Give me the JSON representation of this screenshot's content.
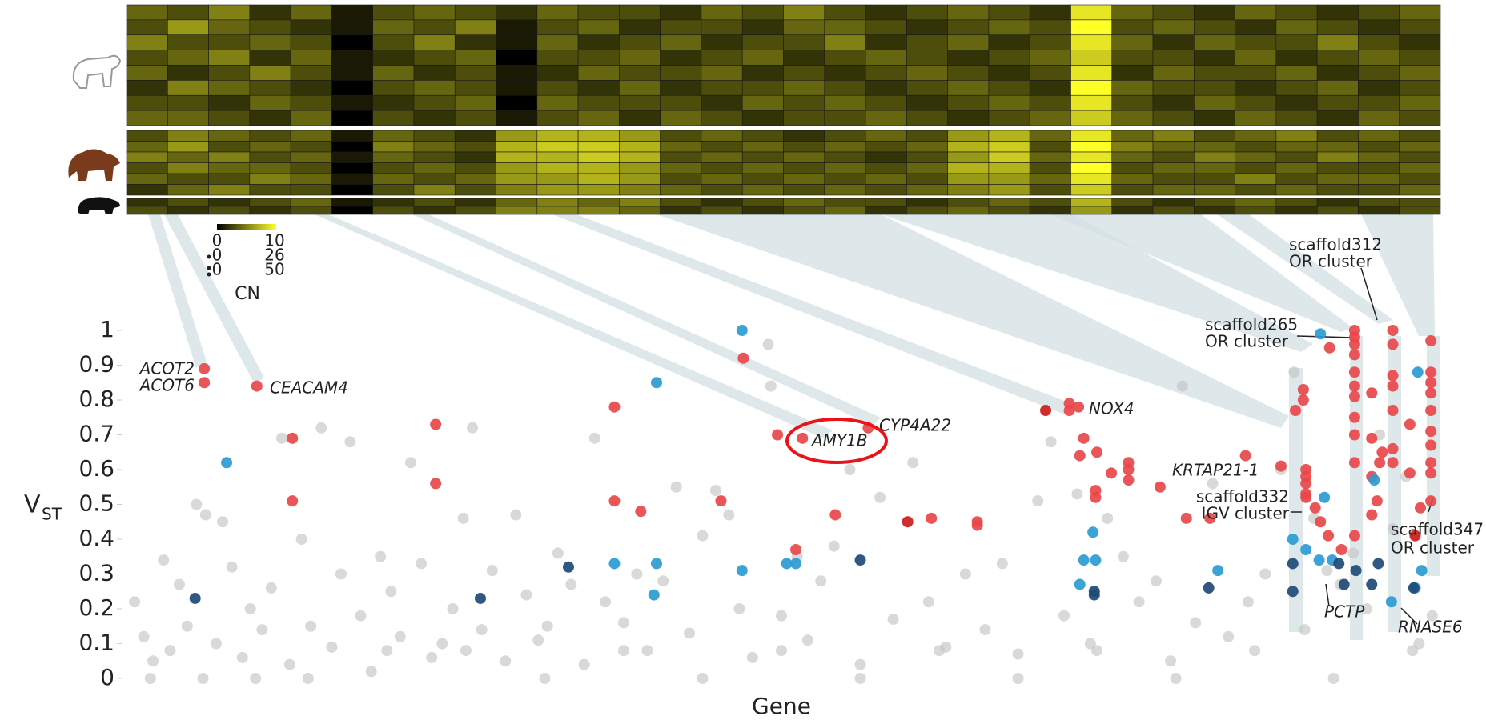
{
  "chart_data": [
    {
      "type": "heatmap",
      "groups": [
        [
          [
            4,
            3,
            5,
            2,
            4,
            1,
            3,
            4,
            3,
            2,
            4,
            3,
            3,
            2,
            4,
            3,
            5,
            3,
            2,
            3,
            4,
            3,
            2,
            9,
            4,
            3,
            2,
            4,
            3,
            2,
            3,
            4
          ],
          [
            3,
            6,
            4,
            3,
            2,
            1,
            4,
            3,
            5,
            1,
            3,
            4,
            2,
            3,
            3,
            2,
            4,
            4,
            3,
            2,
            3,
            4,
            3,
            10,
            3,
            4,
            3,
            2,
            4,
            3,
            2,
            3
          ],
          [
            5,
            3,
            3,
            4,
            3,
            0,
            3,
            5,
            2,
            1,
            4,
            2,
            3,
            4,
            2,
            3,
            3,
            5,
            2,
            3,
            4,
            2,
            3,
            9,
            4,
            2,
            4,
            3,
            3,
            5,
            3,
            2
          ],
          [
            3,
            4,
            5,
            2,
            4,
            1,
            2,
            3,
            4,
            0,
            3,
            3,
            4,
            2,
            3,
            4,
            2,
            3,
            4,
            3,
            2,
            3,
            4,
            8,
            3,
            3,
            2,
            4,
            2,
            3,
            4,
            3
          ],
          [
            4,
            2,
            3,
            5,
            3,
            1,
            4,
            2,
            3,
            1,
            2,
            4,
            3,
            3,
            4,
            2,
            3,
            2,
            3,
            4,
            3,
            2,
            3,
            9,
            2,
            4,
            3,
            3,
            4,
            2,
            3,
            4
          ],
          [
            2,
            5,
            4,
            3,
            2,
            0,
            3,
            4,
            3,
            1,
            3,
            2,
            4,
            2,
            3,
            3,
            4,
            3,
            2,
            3,
            4,
            3,
            2,
            10,
            4,
            3,
            3,
            2,
            3,
            4,
            2,
            3
          ],
          [
            3,
            3,
            2,
            4,
            3,
            1,
            2,
            3,
            4,
            0,
            4,
            3,
            3,
            3,
            2,
            4,
            3,
            4,
            3,
            2,
            3,
            4,
            3,
            9,
            3,
            2,
            4,
            3,
            2,
            3,
            3,
            4
          ],
          [
            4,
            4,
            3,
            2,
            4,
            0,
            3,
            2,
            3,
            1,
            3,
            4,
            2,
            4,
            3,
            2,
            3,
            3,
            4,
            3,
            2,
            3,
            4,
            8,
            4,
            3,
            2,
            4,
            3,
            2,
            4,
            3
          ]
        ],
        [
          [
            3,
            5,
            4,
            3,
            4,
            1,
            4,
            3,
            2,
            6,
            7,
            7,
            6,
            3,
            4,
            3,
            2,
            3,
            4,
            3,
            6,
            7,
            4,
            9,
            4,
            5,
            3,
            4,
            5,
            3,
            4,
            3
          ],
          [
            4,
            6,
            3,
            4,
            3,
            0,
            5,
            4,
            3,
            7,
            8,
            8,
            7,
            4,
            3,
            4,
            3,
            4,
            3,
            4,
            7,
            8,
            3,
            10,
            5,
            4,
            4,
            3,
            4,
            4,
            3,
            4
          ],
          [
            5,
            4,
            5,
            3,
            4,
            1,
            4,
            3,
            2,
            7,
            7,
            8,
            7,
            3,
            4,
            3,
            4,
            3,
            2,
            3,
            6,
            8,
            4,
            9,
            4,
            3,
            5,
            4,
            3,
            5,
            4,
            3
          ],
          [
            3,
            5,
            4,
            4,
            3,
            0,
            3,
            4,
            3,
            6,
            7,
            7,
            6,
            4,
            3,
            4,
            3,
            4,
            3,
            4,
            7,
            7,
            3,
            10,
            3,
            4,
            4,
            3,
            4,
            3,
            3,
            4
          ],
          [
            4,
            3,
            3,
            5,
            4,
            1,
            4,
            3,
            4,
            6,
            6,
            7,
            6,
            3,
            4,
            3,
            4,
            3,
            4,
            3,
            6,
            6,
            4,
            9,
            4,
            3,
            3,
            5,
            3,
            4,
            4,
            3
          ],
          [
            2,
            4,
            5,
            3,
            3,
            0,
            3,
            5,
            3,
            5,
            6,
            6,
            5,
            4,
            3,
            4,
            3,
            4,
            3,
            4,
            5,
            6,
            3,
            8,
            3,
            4,
            4,
            3,
            4,
            3,
            3,
            4
          ]
        ],
        [
          [
            2,
            3,
            2,
            3,
            4,
            1,
            2,
            3,
            2,
            4,
            5,
            4,
            5,
            3,
            2,
            3,
            4,
            3,
            3,
            2,
            3,
            4,
            3,
            7,
            3,
            2,
            3,
            4,
            3,
            2,
            3,
            3
          ],
          [
            3,
            2,
            3,
            2,
            3,
            0,
            3,
            2,
            3,
            5,
            5,
            5,
            4,
            2,
            3,
            2,
            3,
            4,
            2,
            3,
            4,
            3,
            2,
            6,
            2,
            3,
            2,
            3,
            2,
            3,
            2,
            3
          ]
        ]
      ],
      "colorbar": {
        "title": "CN",
        "min": [
          0,
          0,
          0
        ],
        "max": [
          10,
          26,
          50
        ]
      }
    },
    {
      "type": "scatter",
      "ylabel": "V",
      "ylabel_sub": "ST",
      "xlabel": "Gene",
      "xlim": [
        0,
        1000
      ],
      "ylim": [
        0,
        1
      ],
      "yticks": [
        0,
        0.1,
        0.2,
        0.3,
        0.4,
        0.5,
        0.6,
        0.7,
        0.8,
        0.9,
        1
      ],
      "series": [
        {
          "color": "#c4c4c4",
          "x": [
            8,
            15,
            22,
            30,
            35,
            42,
            48,
            55,
            62,
            70,
            75,
            82,
            90,
            96,
            105,
            112,
            120,
            126,
            135,
            142,
            150,
            158,
            165,
            172,
            180,
            188,
            195,
            203,
            210,
            218,
            226,
            234,
            242,
            250,
            258,
            265,
            272,
            280,
            290,
            298,
            306,
            315,
            322,
            330,
            340,
            350,
            358,
            366,
            380,
            390,
            398,
            410,
            420,
            430,
            440,
            450,
            460,
            468,
            478,
            490,
            492,
            500,
            512,
            520,
            530,
            540,
            552,
            560,
            575,
            585,
            600,
            612,
            625,
            640,
            655,
            668,
            680,
            695,
            705,
            715,
            725,
            735,
            748,
            760,
            772,
            785,
            796,
            805,
            815,
            828,
            840,
            855,
            868,
            880,
            890,
            898,
            905,
            915,
            925,
            935,
            945,
            955,
            965,
            975,
            985,
            995,
            20,
            60,
            100,
            140,
            200,
            260,
            320,
            380,
            440,
            500,
            560,
            620,
            680,
            740,
            800,
            860,
            920,
            980
          ],
          "values": [
            0.22,
            0.12,
            0.05,
            0.34,
            0.08,
            0.27,
            0.15,
            0.5,
            0.47,
            0.1,
            0.45,
            0.32,
            0.06,
            0.2,
            0.14,
            0.26,
            0.69,
            0.04,
            0.4,
            0.15,
            0.72,
            0.09,
            0.3,
            0.68,
            0.18,
            0.02,
            0.35,
            0.25,
            0.12,
            0.62,
            0.33,
            0.06,
            0.1,
            0.2,
            0.46,
            0.72,
            0.14,
            0.31,
            0.05,
            0.47,
            0.24,
            0.11,
            0.15,
            0.36,
            0.27,
            0.04,
            0.69,
            0.22,
            0.16,
            0.3,
            0.08,
            0.28,
            0.55,
            0.13,
            0.41,
            0.54,
            0.47,
            0.2,
            0.06,
            0.96,
            0.84,
            0.18,
            0.35,
            0.11,
            0.28,
            0.38,
            0.6,
            0.04,
            0.52,
            0.17,
            0.62,
            0.22,
            0.09,
            0.3,
            0.14,
            0.33,
            0.07,
            0.51,
            0.68,
            0.18,
            0.53,
            0.1,
            0.46,
            0.35,
            0.22,
            0.28,
            0.05,
            0.84,
            0.16,
            0.56,
            0.12,
            0.22,
            0.3,
            0.6,
            0.88,
            0.14,
            0.46,
            0.31,
            0.27,
            0.36,
            0.2,
            0.7,
            0.43,
            0.58,
            0.1,
            0.18,
            0,
            0,
            0,
            0,
            0.08,
            0.08,
            0,
            0.08,
            0,
            0.08,
            0,
            0.08,
            0,
            0.08,
            0,
            0.08,
            0,
            0.08
          ]
        },
        {
          "color": "#e8474a",
          "x": [
            61,
            61,
            101,
            128,
            128,
            237,
            237,
            373,
            373,
            393,
            454,
            471,
            497,
            516,
            511,
            541,
            566,
            614,
            649,
            649,
            719,
            726,
            719,
            730,
            727,
            740,
            739,
            739,
            751,
            764,
            764,
            764,
            788,
            808,
            826,
            853,
            880,
            897,
            897,
            891,
            899,
            899,
            899,
            899,
            899,
            906,
            910,
            916,
            917,
            936,
            936,
            936,
            936,
            936,
            936,
            936,
            936,
            936,
            936,
            936,
            926,
            949,
            949,
            949,
            949,
            953,
            955,
            957,
            965,
            965,
            965,
            965,
            965,
            965,
            965,
            978,
            978,
            994,
            994,
            994,
            994,
            994,
            994,
            994,
            994,
            994,
            994,
            986
          ],
          "values": [
            0.89,
            0.85,
            0.84,
            0.69,
            0.51,
            0.73,
            0.56,
            0.78,
            0.51,
            0.48,
            0.51,
            0.92,
            0.7,
            0.69,
            0.37,
            0.47,
            0.72,
            0.46,
            0.45,
            0.44,
            0.79,
            0.78,
            0.77,
            0.69,
            0.64,
            0.65,
            0.54,
            0.52,
            0.59,
            0.62,
            0.6,
            0.57,
            0.55,
            0.46,
            0.46,
            0.64,
            0.61,
            0.83,
            0.8,
            0.77,
            0.6,
            0.58,
            0.56,
            0.53,
            0.52,
            0.49,
            0.45,
            0.41,
            0.95,
            1,
            0.98,
            0.96,
            0.93,
            0.88,
            0.84,
            0.81,
            0.75,
            0.7,
            0.62,
            0.41,
            0.37,
            0.82,
            0.69,
            0.58,
            0.47,
            0.51,
            0.62,
            0.65,
            1,
            0.96,
            0.87,
            0.84,
            0.77,
            0.66,
            0.62,
            0.73,
            0.59,
            0.97,
            0.88,
            0.85,
            0.82,
            0.77,
            0.71,
            0.67,
            0.62,
            0.59,
            0.51,
            0.49
          ]
        },
        {
          "color": "#cc1b1b",
          "x": [
            596,
            701,
            982
          ],
          "values": [
            0.45,
            0.77,
            0.41
          ]
        },
        {
          "color": "#2d9bd3",
          "x": [
            78,
            470,
            405,
            373,
            405,
            403,
            470,
            504,
            511,
            727,
            730,
            739,
            737,
            832,
            910,
            913,
            889,
            899,
            909,
            919,
            951,
            984,
            987,
            964,
            982
          ],
          "values": [
            0.62,
            1,
            0.85,
            0.33,
            0.33,
            0.24,
            0.31,
            0.33,
            0.33,
            0.27,
            0.34,
            0.34,
            0.42,
            0.31,
            0.99,
            0.52,
            0.4,
            0.37,
            0.34,
            0.34,
            0.57,
            0.88,
            0.31,
            0.22,
            0.26
          ]
        },
        {
          "color": "#1e4a78",
          "x": [
            54,
            271,
            338,
            560,
            738,
            738,
            825,
            889,
            889,
            924,
            928,
            937,
            954,
            949,
            981
          ],
          "values": [
            0.23,
            0.23,
            0.32,
            0.34,
            0.25,
            0.24,
            0.26,
            0.33,
            0.25,
            0.33,
            0.27,
            0.31,
            0.33,
            0.27,
            0.26
          ]
        }
      ],
      "annotations": [
        [
          "ACOT2"
        ],
        [
          "ACOT6"
        ],
        [
          "CEACAM4"
        ],
        [
          "AMY1B"
        ],
        [
          "CYP4A22"
        ],
        [
          "NOX4"
        ],
        [
          "KRTAP21-1"
        ],
        [
          "scaffold312",
          "OR cluster"
        ],
        [
          "scaffold265",
          "OR cluster"
        ],
        [
          "scaffold332",
          "IGV cluster"
        ],
        [
          "scaffold347",
          "OR cluster"
        ],
        [
          "PCTP"
        ],
        [
          "RNASE6"
        ]
      ]
    }
  ]
}
